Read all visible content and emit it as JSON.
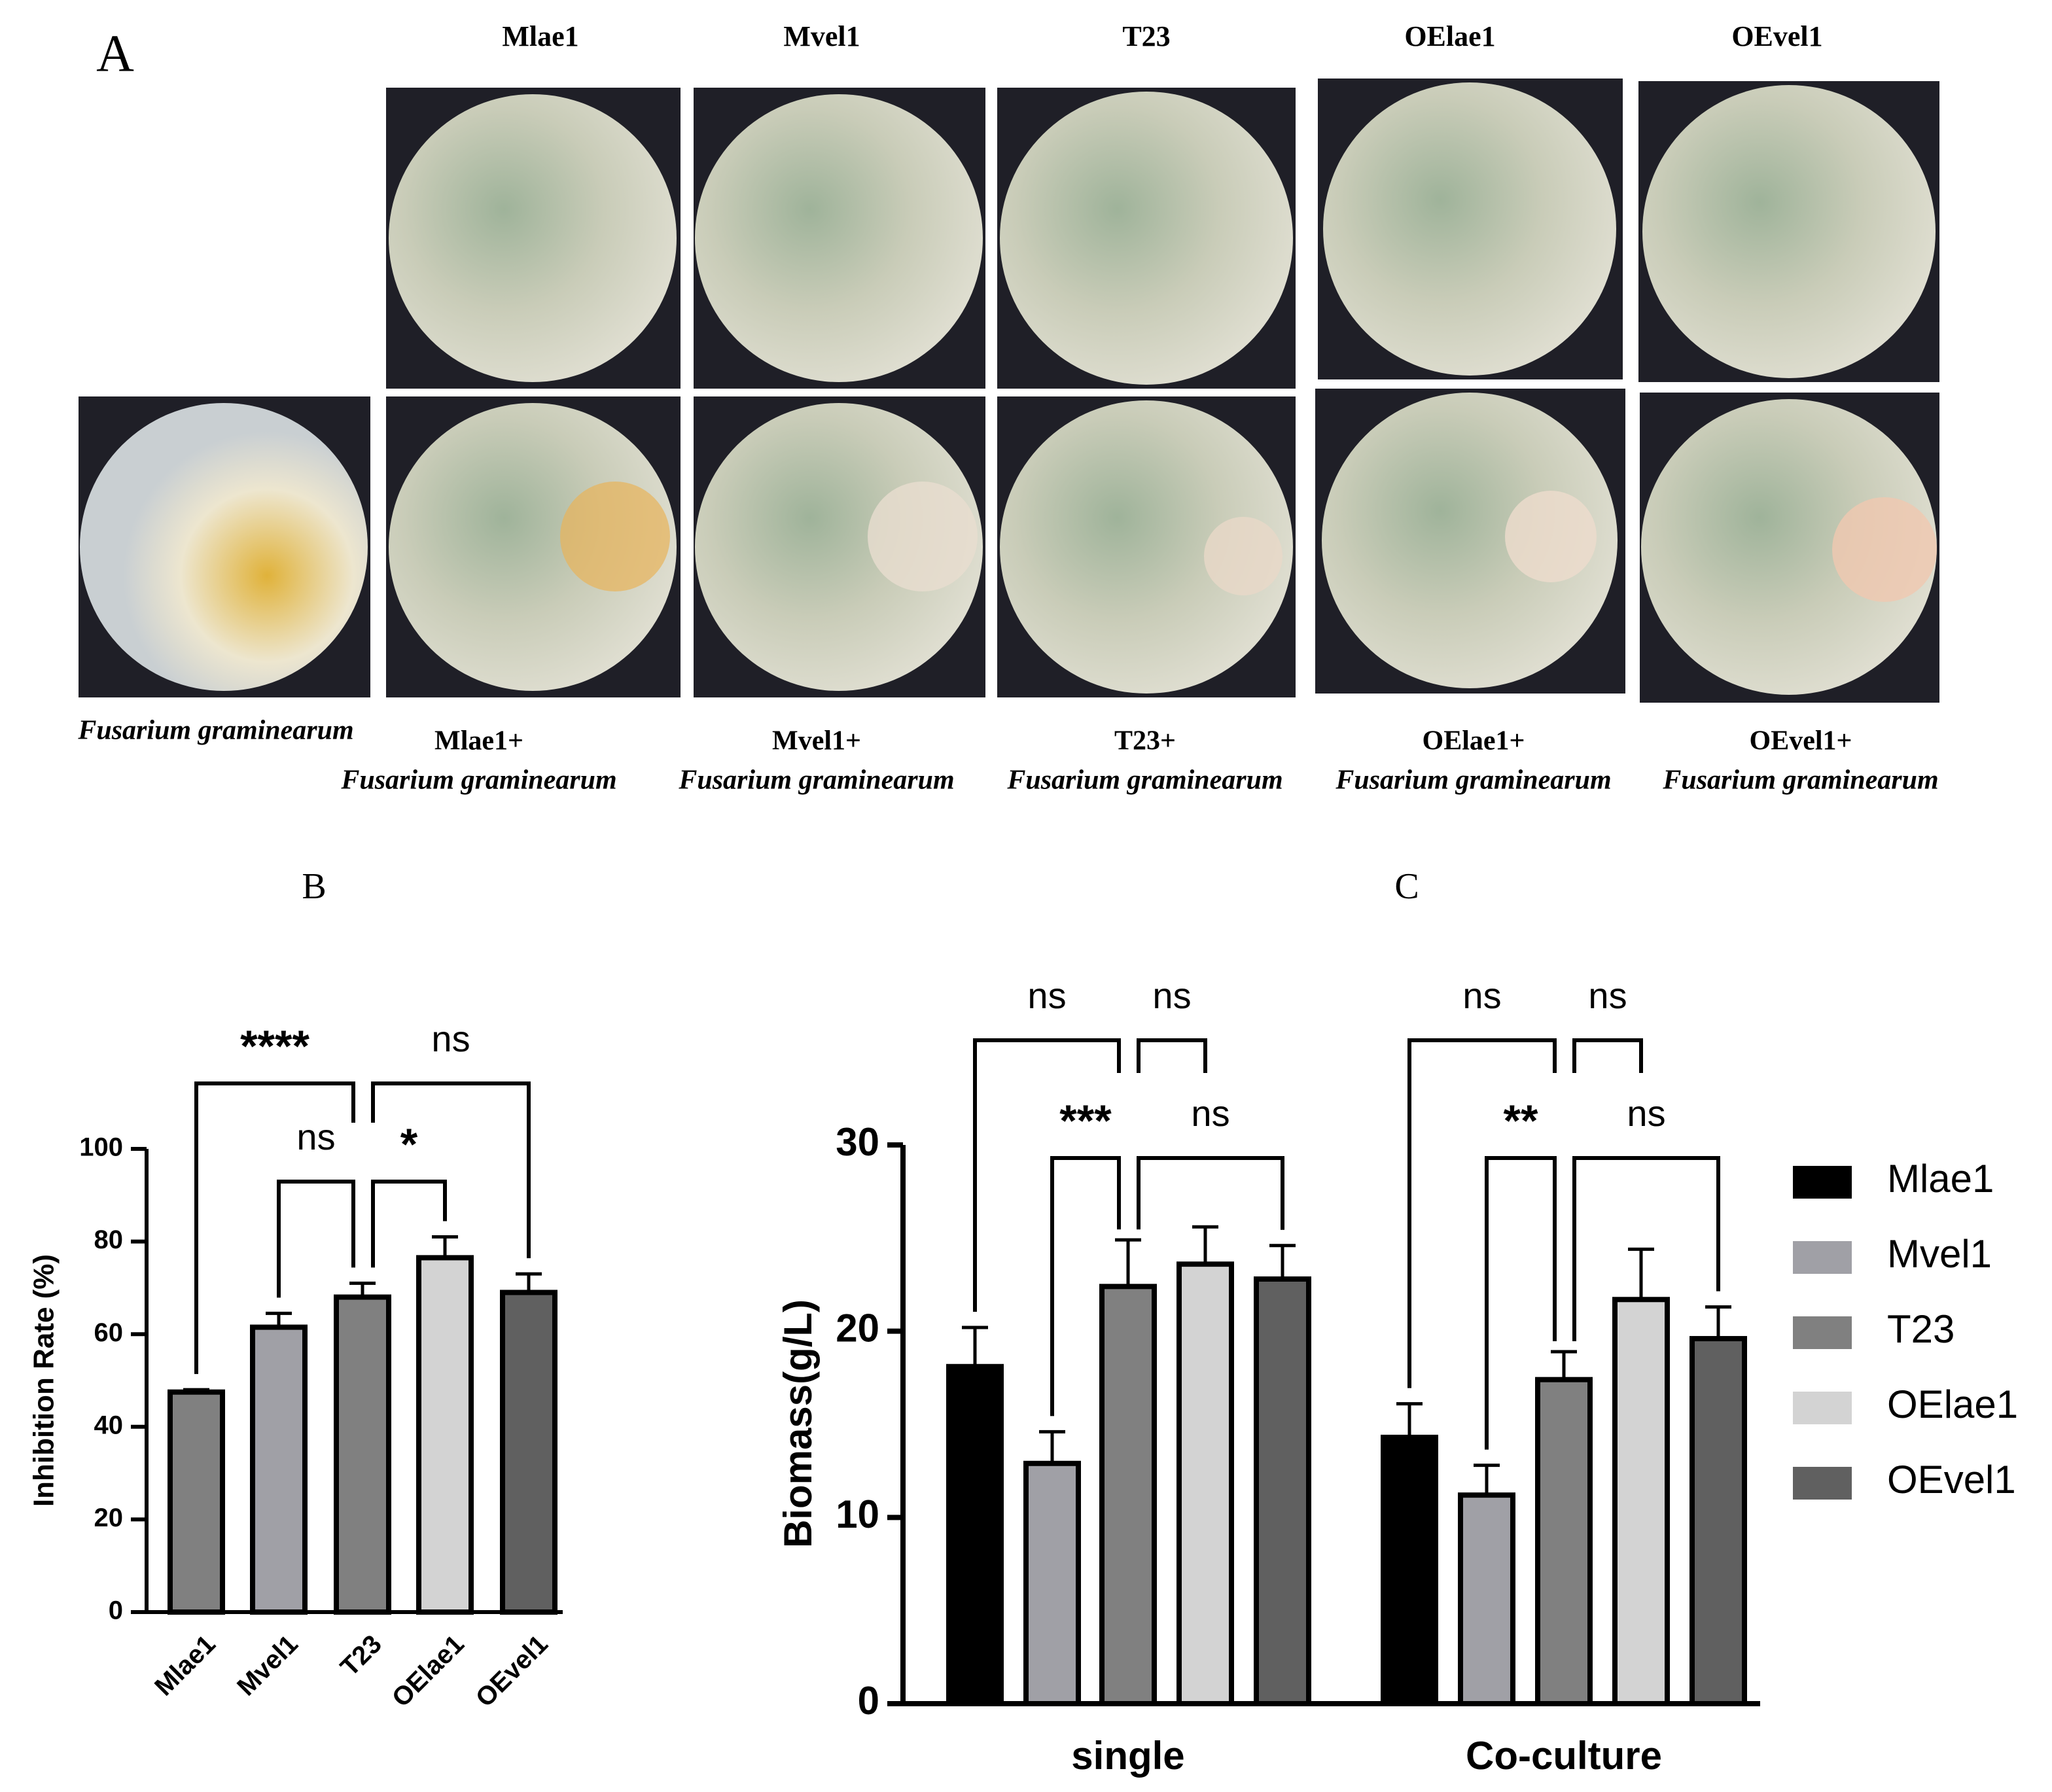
{
  "panel_a": {
    "label": "A",
    "headers": [
      "Mlae1",
      "Mvel1",
      "T23",
      "OElae1",
      "OEvel1"
    ],
    "captions": [
      [
        "Fusarium graminearum"
      ],
      [
        "Mlae1+",
        "Fusarium graminearum"
      ],
      [
        "Mvel1+",
        "Fusarium graminearum"
      ],
      [
        "T23+",
        "Fusarium graminearum"
      ],
      [
        "OElae1+",
        "Fusarium graminearum"
      ],
      [
        "OEvel1+",
        "Fusarium graminearum"
      ]
    ]
  },
  "chart_data": [
    {
      "type": "bar",
      "title": "B",
      "y_label": "Inhibition Rate (%)",
      "categories": [
        "Mlae1",
        "Mvel1",
        "T23",
        "OElae1",
        "OEvel1"
      ],
      "values": [
        47.5,
        61.5,
        68,
        76.5,
        69
      ],
      "errors": [
        0.5,
        3,
        3,
        4.5,
        4
      ],
      "colors": [
        "#808080",
        "#a0a0a6",
        "#808080",
        "#d3d3d3",
        "#606060"
      ],
      "ylim": [
        0,
        100
      ],
      "yticks": [
        0,
        20,
        40,
        60,
        80,
        100
      ],
      "annotations": [
        "****",
        "ns",
        "ns",
        "*"
      ]
    },
    {
      "type": "grouped_bar",
      "title": "C",
      "y_label": "Biomass(g/L)",
      "categories": [
        "single",
        "Co-culture"
      ],
      "series": [
        {
          "name": "Mlae1",
          "color": "#000000",
          "values": [
            18.1,
            14.3
          ],
          "errors": [
            2.1,
            1.8
          ]
        },
        {
          "name": "Mvel1",
          "color": "#a0a0a6",
          "values": [
            12.9,
            11.2
          ],
          "errors": [
            1.7,
            1.6
          ]
        },
        {
          "name": "T23",
          "color": "#808080",
          "values": [
            22.4,
            17.4
          ],
          "errors": [
            2.5,
            1.5
          ]
        },
        {
          "name": "OElae1",
          "color": "#d3d3d3",
          "values": [
            23.6,
            21.7
          ],
          "errors": [
            2,
            2.7
          ]
        },
        {
          "name": "OEvel1",
          "color": "#606060",
          "values": [
            22.8,
            19.6
          ],
          "errors": [
            1.8,
            1.7
          ]
        }
      ],
      "ylim": [
        0,
        30
      ],
      "yticks": [
        0,
        10,
        20,
        30
      ],
      "annotations": [
        "ns",
        "ns",
        "***",
        "ns",
        "ns",
        "ns",
        "**",
        "ns"
      ]
    }
  ]
}
